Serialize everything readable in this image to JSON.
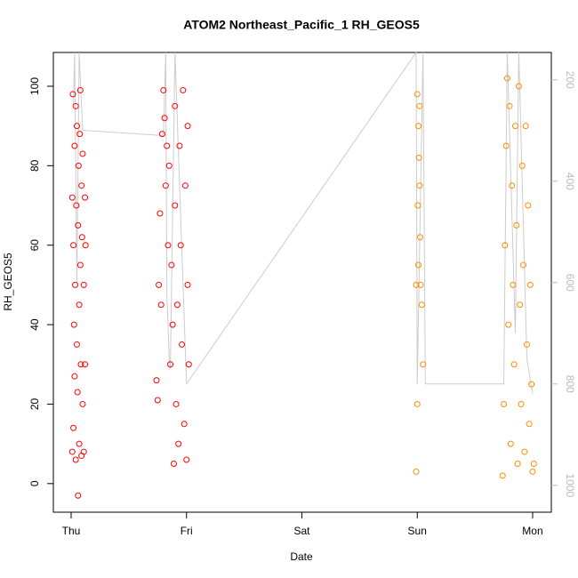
{
  "chart_data": {
    "type": "scatter",
    "title": "ATOM2 Northeast_Pacific_1 RH_GEOS5",
    "xlabel": "Date",
    "ylabel": "RH_GEOS5",
    "xlim": [
      -0.154,
      4.162
    ],
    "xticks": [
      {
        "value": 0,
        "label": "Thu"
      },
      {
        "value": 1,
        "label": "Fri"
      },
      {
        "value": 2,
        "label": "Sat"
      },
      {
        "value": 3,
        "label": "Sun"
      },
      {
        "value": 4,
        "label": "Mon"
      }
    ],
    "ylim": [
      -7.2,
      108.5
    ],
    "yticks": [
      0,
      20,
      40,
      60,
      80,
      100
    ],
    "y2lim": [
      1053,
      146
    ],
    "y2ticks": [
      200,
      400,
      600,
      800,
      1000
    ],
    "y2color": "#bbbbbb",
    "series": [
      {
        "color": "#ff0000",
        "x": [
          0.01,
          0.01,
          0.015,
          0.02,
          0.02,
          0.025,
          0.03,
          0.03,
          0.035,
          0.04,
          0.04,
          0.045,
          0.05,
          0.05,
          0.055,
          0.06,
          0.06,
          0.065,
          0.07,
          0.07,
          0.075,
          0.08,
          0.08,
          0.085,
          0.09,
          0.09,
          0.095,
          0.1,
          0.1,
          0.11,
          0.11,
          0.12,
          0.12,
          0.125,
          0.74,
          0.75,
          0.76,
          0.77,
          0.78,
          0.79,
          0.8,
          0.81,
          0.82,
          0.83,
          0.84,
          0.85,
          0.86,
          0.87,
          0.88,
          0.89,
          0.9,
          0.9,
          0.91,
          0.92,
          0.93,
          0.94,
          0.95,
          0.96,
          0.97,
          0.98,
          0.99,
          1.0,
          1.01,
          1.01,
          1.02
        ],
        "values": [
          8,
          72,
          98,
          60,
          14,
          40,
          85,
          27,
          50,
          95,
          6,
          70,
          35,
          90,
          23,
          65,
          -3,
          80,
          45,
          10,
          88,
          55,
          99,
          30,
          75,
          7,
          62,
          20,
          83,
          50,
          8,
          72,
          30,
          60,
          26,
          21,
          50,
          68,
          45,
          88,
          99,
          92,
          75,
          85,
          60,
          80,
          30,
          55,
          40,
          5,
          70,
          95,
          20,
          45,
          10,
          85,
          60,
          35,
          99,
          15,
          75,
          6,
          50,
          90,
          30
        ]
      },
      {
        "color": "#ff8c00",
        "x": [
          2.99,
          2.99,
          3.0,
          3.0,
          3.005,
          3.01,
          3.01,
          3.015,
          3.02,
          3.02,
          3.025,
          3.03,
          3.04,
          3.05,
          3.74,
          3.75,
          3.76,
          3.77,
          3.78,
          3.79,
          3.8,
          3.81,
          3.82,
          3.83,
          3.84,
          3.85,
          3.86,
          3.87,
          3.88,
          3.89,
          3.9,
          3.91,
          3.92,
          3.93,
          3.94,
          3.95,
          3.96,
          3.97,
          3.98,
          3.99,
          4.0,
          4.01
        ],
        "values": [
          3,
          50,
          98,
          20,
          70,
          90,
          55,
          82,
          75,
          95,
          62,
          50,
          45,
          30,
          2,
          20,
          60,
          85,
          102,
          40,
          95,
          10,
          75,
          50,
          30,
          90,
          65,
          5,
          100,
          45,
          20,
          80,
          55,
          8,
          90,
          35,
          70,
          15,
          50,
          25,
          3,
          5
        ]
      },
      {
        "color": "#cccccc",
        "type": "line",
        "axis": "y2",
        "x": [
          0.02,
          0.03,
          0.05,
          0.07,
          0.1,
          0.13,
          0.8,
          0.82,
          0.83,
          0.85,
          0.86,
          0.9,
          1.0,
          2.99,
          3.0,
          3.05,
          3.07,
          3.75,
          3.78,
          3.85,
          3.88,
          3.95,
          4.0
        ],
        "values": [
          250,
          146,
          600,
          146,
          300,
          300,
          310,
          146,
          620,
          750,
          770,
          146,
          800,
          146,
          800,
          146,
          800,
          800,
          146,
          700,
          146,
          750,
          820
        ]
      }
    ]
  }
}
